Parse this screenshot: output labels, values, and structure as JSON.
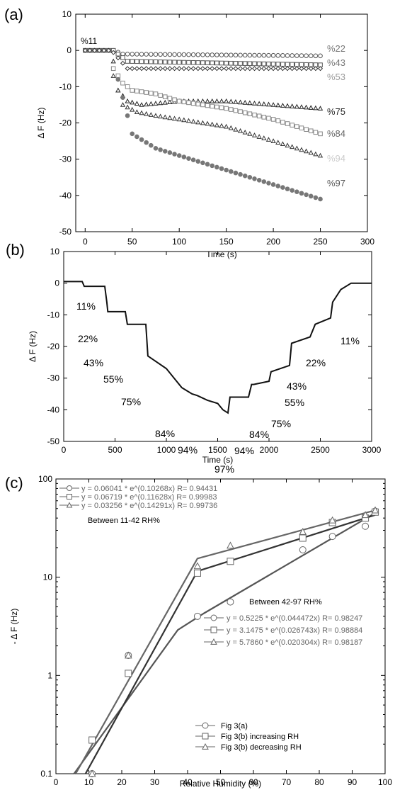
{
  "chart_data": [
    {
      "panel": "(a)",
      "type": "scatter",
      "xlabel": "Time (s)",
      "ylabel": "Δ F (Hz)",
      "xlim": [
        -10,
        300
      ],
      "ylim": [
        -50,
        10
      ],
      "xticks": [
        0,
        50,
        100,
        150,
        200,
        250,
        300
      ],
      "yticks": [
        10,
        0,
        -10,
        -20,
        -30,
        -40,
        -50
      ],
      "annotation": "%11",
      "series": [
        {
          "name": "%22",
          "marker": "circle-open",
          "color": "#555555",
          "label_color": "#777777",
          "x": [
            0,
            30,
            40,
            250
          ],
          "y": [
            0,
            0,
            -1,
            -1.5
          ]
        },
        {
          "name": "%43",
          "marker": "square-open",
          "color": "#555555",
          "label_color": "#777777",
          "x": [
            0,
            30,
            45,
            250
          ],
          "y": [
            0,
            0,
            -3,
            -4
          ]
        },
        {
          "name": "%53",
          "marker": "diamond-open",
          "color": "#333333",
          "label_color": "#999999",
          "x": [
            0,
            28,
            45,
            250
          ],
          "y": [
            0,
            0,
            -5,
            -5
          ]
        },
        {
          "name": "%75",
          "marker": "triangle-open",
          "color": "#222222",
          "label_color": "#222222",
          "x": [
            30,
            35,
            45,
            60,
            100,
            150,
            200,
            250
          ],
          "y": [
            -3,
            -11,
            -14,
            -15,
            -14,
            -14,
            -15,
            -16
          ]
        },
        {
          "name": "%84",
          "marker": "square-open",
          "color": "#888888",
          "label_color": "#666666",
          "x": [
            30,
            40,
            50,
            75,
            100,
            150,
            200,
            250
          ],
          "y": [
            -5,
            -9,
            -11,
            -12,
            -14,
            -16,
            -19,
            -23
          ]
        },
        {
          "name": "%94",
          "marker": "triangle-open",
          "color": "#333333",
          "label_color": "#cccccc",
          "x": [
            30,
            40,
            55,
            75,
            100,
            150,
            200,
            250
          ],
          "y": [
            -7,
            -15,
            -17,
            -18,
            -19,
            -21,
            -25,
            -29
          ]
        },
        {
          "name": "%97",
          "marker": "circle-filled",
          "color": "#777777",
          "label_color": "#555555",
          "x": [
            35,
            40,
            50,
            75,
            100,
            150,
            200,
            250
          ],
          "y": [
            -8,
            -13,
            -23,
            -27,
            -29,
            -33,
            -37,
            -41
          ]
        }
      ]
    },
    {
      "panel": "(b)",
      "type": "line",
      "xlabel": "Time (s)",
      "ylabel": "Δ F (Hz)",
      "xlim": [
        0,
        3000
      ],
      "ylim": [
        -50,
        10
      ],
      "xticks": [
        0,
        500,
        1000,
        1500,
        2000,
        2500,
        3000
      ],
      "yticks": [
        10,
        0,
        -10,
        -20,
        -30,
        -40,
        -50
      ],
      "x": [
        0,
        180,
        200,
        220,
        400,
        420,
        430,
        600,
        620,
        800,
        820,
        1000,
        1100,
        1150,
        1200,
        1250,
        1300,
        1400,
        1500,
        1550,
        1600,
        1620,
        1650,
        1800,
        1830,
        1850,
        2000,
        2020,
        2200,
        2220,
        2400,
        2450,
        2600,
        2620,
        2700,
        2800,
        3000
      ],
      "y": [
        0.5,
        0.5,
        -1,
        -1,
        -1,
        -6,
        -9,
        -9,
        -13,
        -13,
        -23,
        -27,
        -31,
        -33,
        -34,
        -35,
        -35.5,
        -37,
        -38,
        -40,
        -41,
        -36,
        -36,
        -36,
        -32,
        -32,
        -31,
        -28,
        -26,
        -19,
        -17,
        -13,
        -11,
        -6,
        -2,
        0,
        0
      ],
      "annotations": [
        "11%",
        "22%",
        "43%",
        "55%",
        "75%",
        "84%",
        "94%",
        "97%",
        "94%",
        "84%",
        "75%",
        "55%",
        "43%",
        "22%",
        "11%"
      ]
    },
    {
      "panel": "(c)",
      "type": "scatter",
      "yscale": "log",
      "xlabel": "Relative Humidity (%)",
      "ylabel": "- Δ F (Hz)",
      "xlim": [
        0,
        100
      ],
      "ylim": [
        0.1,
        100
      ],
      "xticks": [
        0,
        10,
        20,
        30,
        40,
        50,
        60,
        70,
        80,
        90,
        100
      ],
      "yticks": [
        100,
        10,
        1,
        0.1
      ],
      "ytick_labels": [
        "100",
        "10",
        "1",
        "0.1"
      ],
      "text": {
        "left_title": "Between 11-42 RH%",
        "right_title": "Between 42-97 RH%",
        "fits_low": [
          "y = 0.06041 * e^(0.10268x) R= 0.94431",
          "y = 0.06719 * e^(0.11628x) R= 0.99983",
          "y = 0.03256 * e^(0.14291x) R= 0.99736"
        ],
        "fits_high": [
          "y = 0.5225 * e^(0.044472x) R= 0.98247",
          "y = 3.1475 * e^(0.026743x) R= 0.98884",
          "y = 5.7860 * e^(0.020304x) R= 0.98187"
        ]
      },
      "series": [
        {
          "name": "Fig 3(a)",
          "marker": "circle",
          "color": "#666666",
          "x": [
            11,
            22,
            43,
            53,
            75,
            84,
            94,
            97
          ],
          "y": [
            0.1,
            1.6,
            4,
            5.6,
            19,
            26,
            33,
            47
          ]
        },
        {
          "name": "Fig 3(b) increasing RH",
          "marker": "square",
          "color": "#666666",
          "x": [
            11,
            22,
            43,
            53,
            75,
            84,
            94,
            97
          ],
          "y": [
            0.22,
            1.05,
            11,
            14.5,
            25,
            36,
            40,
            46
          ]
        },
        {
          "name": "Fig 3(b) decreasing RH",
          "marker": "triangle",
          "color": "#666666",
          "x": [
            11,
            22,
            43,
            53,
            75,
            84,
            94,
            97
          ],
          "y": [
            0.1,
            1.6,
            13,
            21,
            29,
            38,
            43,
            48
          ]
        }
      ]
    }
  ]
}
